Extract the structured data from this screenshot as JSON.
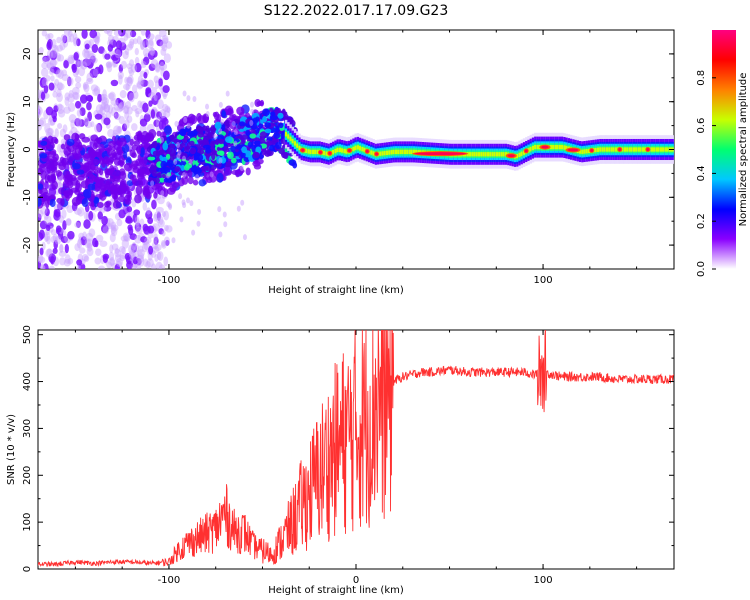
{
  "figure": {
    "title": "S122.2022.017.17.09.G23"
  },
  "chart_data": [
    {
      "type": "heatmap",
      "title": "S122.2022.017.17.09.G23",
      "xlabel": "Height of straight line (km)",
      "ylabel": "Frequency (Hz)",
      "xlim": [
        -170,
        170
      ],
      "ylim": [
        -25,
        25
      ],
      "xticks": [
        -100,
        100
      ],
      "yticks": [
        -20,
        -10,
        0,
        10,
        20
      ],
      "colorbar": {
        "label": "Normalized spectral amplitude",
        "range": [
          0,
          1
        ],
        "ticks": [
          0.0,
          0.2,
          0.4,
          0.6,
          0.8
        ],
        "colormap": [
          "#ffffff",
          "#8a00ff",
          "#0000ff",
          "#00c8ff",
          "#00ff70",
          "#c8ff00",
          "#ff8000",
          "#ff0000",
          "#ff0080"
        ]
      },
      "ridge": {
        "x": [
          -170,
          -150,
          -130,
          -110,
          -100,
          -90,
          -80,
          -70,
          -60,
          -50,
          -45,
          -40,
          -35,
          -30,
          -25,
          -20,
          -15,
          -10,
          -5,
          0,
          10,
          20,
          30,
          50,
          70,
          80,
          85,
          90,
          95,
          100,
          110,
          120,
          130,
          150,
          170
        ],
        "y": [
          -5,
          -4,
          -5,
          -3,
          -2,
          0,
          0,
          1,
          2,
          3,
          4,
          4,
          2,
          0,
          -0.5,
          -0.5,
          -1,
          0,
          -0.5,
          0.5,
          -1,
          -0.5,
          -0.5,
          -1,
          -1,
          -1,
          -1.5,
          -0.5,
          0.5,
          0.5,
          0.5,
          -0.5,
          0,
          0,
          0
        ]
      }
    },
    {
      "type": "line",
      "xlabel": "Height of straight line (km)",
      "ylabel": "SNR (10 * v/v)",
      "xlim": [
        -170,
        170
      ],
      "ylim": [
        0,
        510
      ],
      "xticks": [
        -100,
        0,
        100
      ],
      "yticks": [
        0,
        100,
        200,
        300,
        400,
        500
      ],
      "color": "#ff3030",
      "series": [
        {
          "x": [
            -170,
            -160,
            -150,
            -140,
            -130,
            -120,
            -110,
            -100,
            -95,
            -90,
            -85,
            -80,
            -75,
            -70,
            -65,
            -60,
            -55,
            -50,
            -45,
            -40,
            -35,
            -30,
            -25,
            -20,
            -15,
            -10,
            -5,
            0,
            5,
            10,
            15,
            20,
            25,
            30,
            35,
            40,
            50,
            60,
            70,
            80,
            90,
            95,
            100,
            105,
            110,
            120,
            130,
            140,
            150,
            160,
            170
          ],
          "y": [
            10,
            10,
            15,
            12,
            15,
            15,
            12,
            15,
            40,
            55,
            65,
            75,
            85,
            120,
            80,
            80,
            50,
            40,
            30,
            60,
            90,
            130,
            160,
            200,
            230,
            260,
            280,
            300,
            320,
            360,
            380,
            400,
            410,
            415,
            420,
            420,
            425,
            420,
            420,
            420,
            420,
            415,
            420,
            415,
            410,
            410,
            410,
            405,
            405,
            405,
            405
          ]
        }
      ]
    }
  ]
}
